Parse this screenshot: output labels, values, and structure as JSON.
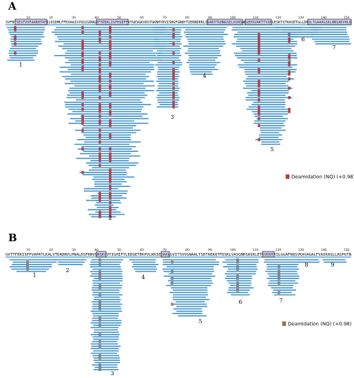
{
  "panels": [
    {
      "label": "A",
      "sequence": "SVFNTSESTVVFAARHTAFILDSDMLFFKVAAISYQSIGDNGRFYDEKLISFHSEFFKYGKVGKVDSTGKNHYEVISHGFGNNYTIERNDEKLSVADYTGHNGSELVGHSNRGEHSVAKTTVSRLESKTSTKASETGLLDRSLTGAAAGSKLNNSADVHLD",
      "ticks": [
        10,
        20,
        30,
        40,
        50,
        60,
        70,
        80,
        90,
        100,
        110,
        120,
        130,
        140,
        150
      ],
      "cluster_labels": [
        "1",
        "2",
        "3",
        "4",
        "5",
        "6",
        "7"
      ],
      "legend": "Deamidation (NQ) (+0.98)"
    },
    {
      "label": "B",
      "sequence": "GVTTFEKISFPVAPATLKALVTDADNVLPNALDSFKNVGNSKGVYIGHIFYLEDGETEKPVLKKIEDAKLGVITSVVGNAALTSDTAEKQTFDSKLVASGNHSASKLETKVDNTKSLGGAFNQSVKAVAGALFVAIKASLLASPGTN",
      "ticks": [
        10,
        20,
        30,
        40,
        50,
        60,
        70,
        80,
        90,
        100,
        110,
        120,
        130,
        140,
        150
      ],
      "cluster_labels": [
        "1",
        "2",
        "3",
        "4",
        "5",
        "6",
        "7",
        "8",
        "9"
      ],
      "legend": "Deamidation (NQ) (+0.98)"
    }
  ]
}
